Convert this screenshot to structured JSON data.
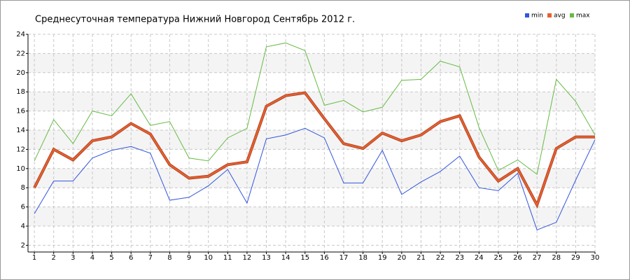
{
  "chart_data": {
    "type": "line",
    "title": "Среднесуточная температура Нижний Новгород  Сентябрь 2012 г.",
    "x": [
      1,
      2,
      3,
      4,
      5,
      6,
      7,
      8,
      9,
      10,
      11,
      12,
      13,
      14,
      15,
      16,
      17,
      18,
      19,
      20,
      21,
      22,
      23,
      24,
      25,
      26,
      27,
      28,
      29,
      30
    ],
    "series": [
      {
        "name": "min",
        "color": "#3355dd",
        "values": [
          5.3,
          8.7,
          8.7,
          11.1,
          11.9,
          12.3,
          11.6,
          6.7,
          7.0,
          8.2,
          9.9,
          6.4,
          13.1,
          13.5,
          14.2,
          13.2,
          8.5,
          8.5,
          11.9,
          7.3,
          8.6,
          9.7,
          11.3,
          8.0,
          7.7,
          9.5,
          3.6,
          4.4,
          8.8,
          13.0
        ]
      },
      {
        "name": "avg",
        "color": "#e8602c",
        "values": [
          8.0,
          12.0,
          10.9,
          12.9,
          13.3,
          14.7,
          13.6,
          10.4,
          9.0,
          9.2,
          10.4,
          10.7,
          16.5,
          17.6,
          17.9,
          15.2,
          12.6,
          12.1,
          13.7,
          12.9,
          13.5,
          14.9,
          15.5,
          11.2,
          8.7,
          10.0,
          6.2,
          12.1,
          13.3,
          13.3
        ]
      },
      {
        "name": "max",
        "color": "#66bb44",
        "values": [
          10.8,
          15.1,
          12.6,
          16.0,
          15.5,
          17.8,
          14.5,
          14.9,
          11.1,
          10.8,
          13.2,
          14.2,
          22.7,
          23.1,
          22.3,
          16.6,
          17.1,
          15.9,
          16.4,
          19.2,
          19.3,
          21.2,
          20.6,
          14.3,
          9.8,
          10.9,
          9.4,
          19.3,
          17.0,
          13.5
        ]
      }
    ],
    "xlim": [
      0.67,
      30
    ],
    "xticks": [
      1,
      2,
      3,
      4,
      5,
      6,
      7,
      8,
      9,
      10,
      11,
      12,
      13,
      14,
      15,
      16,
      17,
      18,
      19,
      20,
      21,
      22,
      23,
      24,
      25,
      26,
      27,
      28,
      29,
      30
    ],
    "ylim": [
      1.3,
      24
    ],
    "yticks": [
      2,
      4,
      6,
      8,
      10,
      12,
      14,
      16,
      18,
      20,
      22,
      24
    ],
    "grid": true,
    "legend": "top-right"
  }
}
